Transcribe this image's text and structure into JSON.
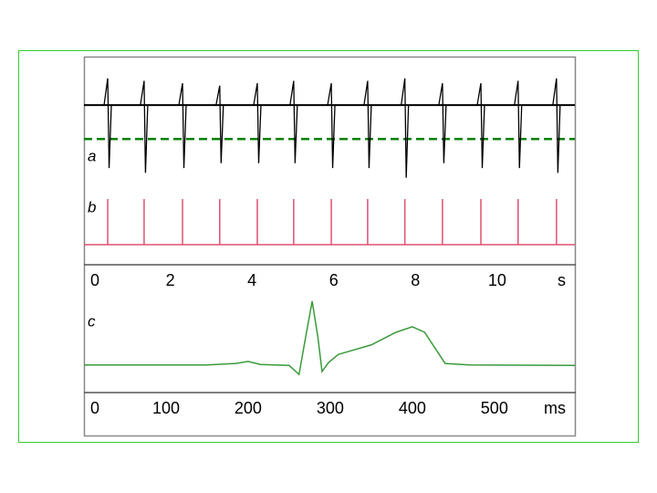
{
  "chart_data": [
    {
      "type": "spikes",
      "panel_label": "a",
      "color": "#000000",
      "threshold_color": "#008000",
      "xlim": [
        0,
        11.9
      ],
      "xticks": [
        0,
        2,
        4,
        6,
        8,
        10
      ],
      "x_unit": "s",
      "ylim": [
        -1.6,
        1
      ],
      "baseline": 0,
      "threshold": -0.7,
      "x": [
        0.47,
        1.36,
        2.3,
        3.21,
        4.13,
        5.02,
        5.94,
        6.83,
        7.74,
        8.66,
        9.6,
        10.51,
        11.45
      ],
      "peaks": [
        0.55,
        0.5,
        0.45,
        0.4,
        0.45,
        0.5,
        0.45,
        0.5,
        0.55,
        0.45,
        0.45,
        0.5,
        0.55
      ],
      "troughs": [
        -1.3,
        -1.4,
        -1.3,
        -1.2,
        -1.2,
        -1.2,
        -1.3,
        -1.3,
        -1.5,
        -1.2,
        -1.3,
        -1.3,
        -1.4
      ]
    },
    {
      "type": "pulses",
      "panel_label": "b",
      "color": "#e05070",
      "xlim": [
        0,
        11.9
      ],
      "ylim": [
        0,
        1.2
      ],
      "x": [
        0.47,
        1.36,
        2.3,
        3.21,
        4.13,
        5.02,
        5.94,
        6.83,
        7.74,
        8.66,
        9.6,
        10.51,
        11.45
      ],
      "values": [
        1,
        1,
        1,
        1,
        1,
        1,
        1,
        1,
        1,
        1,
        1,
        1,
        1
      ]
    },
    {
      "type": "line",
      "panel_label": "c",
      "color": "#3a9a3a",
      "xlim": [
        0,
        598
      ],
      "xticks": [
        0,
        100,
        200,
        300,
        400,
        500
      ],
      "x_unit": "ms",
      "ylim": [
        -0.5,
        1.5
      ],
      "x": [
        0,
        150,
        185,
        200,
        215,
        250,
        262,
        270,
        278,
        285,
        290,
        298,
        310,
        350,
        380,
        400,
        415,
        440,
        470,
        598
      ],
      "values": [
        0.05,
        0.05,
        0.08,
        0.12,
        0.06,
        0.04,
        -0.14,
        0.6,
        1.32,
        0.6,
        -0.08,
        0.1,
        0.26,
        0.45,
        0.7,
        0.81,
        0.7,
        0.08,
        0.05,
        0.04
      ]
    }
  ]
}
